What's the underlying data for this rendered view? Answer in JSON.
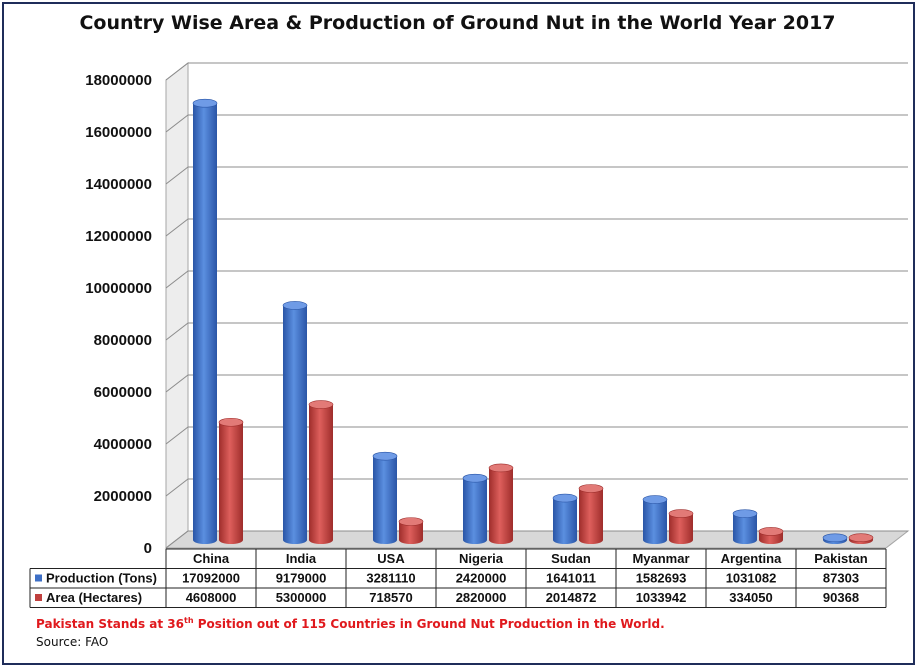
{
  "chart_data": {
    "type": "bar",
    "title": "Country Wise Area & Production of Ground Nut in the World Year 2017",
    "categories": [
      "China",
      "India",
      "USA",
      "Nigeria",
      "Sudan",
      "Myanmar",
      "Argentina",
      "Pakistan"
    ],
    "series": [
      {
        "name": "Production (Tons)",
        "color": "#3d6fc6",
        "values": [
          17092000,
          9179000,
          3281110,
          2420000,
          1641011,
          1582693,
          1031082,
          87303
        ]
      },
      {
        "name": "Area (Hectares)",
        "color": "#c0403e",
        "values": [
          4608000,
          5300000,
          718570,
          2820000,
          2014872,
          1033942,
          334050,
          90368
        ]
      }
    ],
    "ylim": [
      0,
      18000000
    ],
    "yticks": [
      "0",
      "2000000",
      "4000000",
      "6000000",
      "8000000",
      "10000000",
      "12000000",
      "14000000",
      "16000000",
      "18000000"
    ],
    "grid": true,
    "data_table": true
  },
  "note": {
    "prefix": "Pakistan Stands at 36",
    "sup": "th",
    "suffix": " Position out of 115 Countries in Ground Nut Production in the World."
  },
  "source": "Source: FAO"
}
